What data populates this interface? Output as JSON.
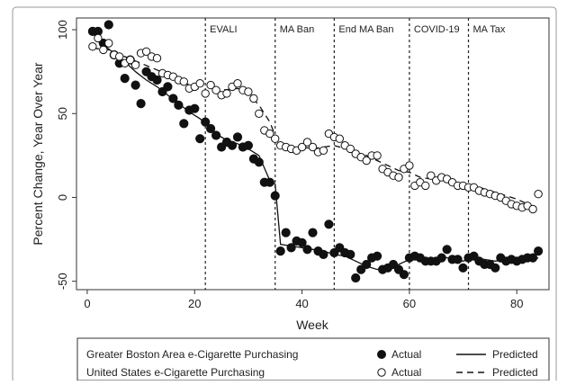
{
  "chart_data": {
    "type": "scatter",
    "xlabel": "Week",
    "ylabel": "Percent Change, Year Over Year",
    "xlim": [
      -2,
      86
    ],
    "ylim": [
      -55,
      107
    ],
    "x_ticks": [
      0,
      20,
      40,
      60,
      80
    ],
    "y_ticks": [
      100,
      50,
      0,
      -50
    ],
    "grid": false,
    "legend_position": "bottom",
    "events": [
      {
        "label": "EVALI",
        "week": 22
      },
      {
        "label": "MA Ban",
        "week": 35
      },
      {
        "label": "End MA Ban",
        "week": 46
      },
      {
        "label": "COVID-19",
        "week": 60
      },
      {
        "label": "MA Tax",
        "week": 71
      }
    ],
    "series": [
      {
        "name": "Greater Boston Area e-Cigarette Purchasing",
        "kind": "actual",
        "marker": "filled-circle",
        "x": [
          1,
          2,
          3,
          4,
          5,
          6,
          7,
          8,
          9,
          10,
          11,
          12,
          13,
          14,
          15,
          16,
          17,
          18,
          19,
          20,
          21,
          22,
          23,
          24,
          25,
          26,
          27,
          28,
          29,
          30,
          31,
          32,
          33,
          34,
          35,
          36,
          37,
          38,
          39,
          40,
          41,
          42,
          43,
          44,
          45,
          46,
          47,
          48,
          49,
          50,
          51,
          52,
          53,
          54,
          55,
          56,
          57,
          58,
          59,
          60,
          61,
          62,
          63,
          64,
          65,
          66,
          67,
          68,
          69,
          70,
          71,
          72,
          73,
          74,
          75,
          76,
          77,
          78,
          79,
          80,
          81,
          82,
          83,
          84
        ],
        "y": [
          99,
          99,
          92,
          103,
          85,
          80,
          71,
          82,
          67,
          56,
          75,
          72,
          70,
          63,
          66,
          59,
          55,
          44,
          52,
          53,
          35,
          45,
          41,
          37,
          30,
          33,
          31,
          36,
          30,
          31,
          23,
          21,
          9,
          9,
          1,
          -32,
          -21,
          -30,
          -26,
          -27,
          -31,
          -21,
          -32,
          -34,
          -16,
          -33,
          -30,
          -33,
          -34,
          -48,
          -43,
          -40,
          -36,
          -35,
          -43,
          -42,
          -40,
          -43,
          -46,
          -36,
          -35,
          -36,
          -38,
          -38,
          -38,
          -36,
          -31,
          -37,
          -37,
          -42,
          -36,
          -35,
          -38,
          -40,
          -40,
          -42,
          -36,
          -38,
          -37,
          -38,
          -37,
          -36,
          -36,
          -32
        ]
      },
      {
        "name": "Greater Boston Area e-Cigarette Purchasing",
        "kind": "predicted",
        "line": "solid",
        "x": [
          1,
          3,
          5,
          7,
          9,
          11,
          13,
          15,
          17,
          19,
          21,
          22,
          24,
          26,
          28,
          30,
          32,
          34,
          35,
          36,
          38,
          40,
          42,
          44,
          46,
          48,
          50,
          52,
          54,
          56,
          58,
          60,
          62,
          64,
          66,
          68,
          70,
          72,
          74,
          76,
          78,
          80,
          82,
          84
        ],
        "y": [
          98,
          91,
          86,
          81,
          75,
          70,
          66,
          61,
          56,
          51,
          47,
          44,
          38,
          34,
          32,
          29,
          25,
          10,
          8,
          -28,
          -29,
          -30,
          -31,
          -32,
          -34,
          -35,
          -38,
          -41,
          -43,
          -41,
          -40,
          -37,
          -36,
          -37,
          -35,
          -37,
          -38,
          -36,
          -37,
          -38,
          -37,
          -37,
          -38,
          -36
        ]
      },
      {
        "name": "United States e-Cigarette Purchasing",
        "kind": "actual",
        "marker": "hollow-circle",
        "x": [
          1,
          2,
          3,
          4,
          5,
          6,
          7,
          8,
          9,
          10,
          11,
          12,
          13,
          14,
          15,
          16,
          17,
          18,
          19,
          20,
          21,
          22,
          23,
          24,
          25,
          26,
          27,
          28,
          29,
          30,
          31,
          32,
          33,
          34,
          35,
          36,
          37,
          38,
          39,
          40,
          41,
          42,
          43,
          44,
          45,
          46,
          47,
          48,
          49,
          50,
          51,
          52,
          53,
          54,
          55,
          56,
          57,
          58,
          59,
          60,
          61,
          62,
          63,
          64,
          65,
          66,
          67,
          68,
          69,
          70,
          71,
          72,
          73,
          74,
          75,
          76,
          77,
          78,
          79,
          80,
          81,
          82,
          83,
          84
        ],
        "y": [
          90,
          95,
          88,
          92,
          85,
          84,
          80,
          82,
          79,
          86,
          87,
          84,
          83,
          74,
          73,
          72,
          70,
          69,
          65,
          66,
          68,
          62,
          67,
          64,
          61,
          62,
          66,
          68,
          64,
          63,
          59,
          50,
          40,
          38,
          35,
          31,
          30,
          29,
          28,
          30,
          33,
          30,
          27,
          28,
          38,
          36,
          35,
          31,
          29,
          26,
          24,
          22,
          25,
          25,
          17,
          15,
          13,
          12,
          17,
          19,
          7,
          9,
          7,
          13,
          10,
          12,
          11,
          9,
          7,
          7,
          6,
          6,
          4,
          3,
          2,
          1,
          0,
          -2,
          -4,
          -5,
          -6,
          -5,
          -7,
          2
        ]
      },
      {
        "name": "United States e-Cigarette Purchasing",
        "kind": "predicted",
        "line": "dashed",
        "x": [
          1,
          4,
          7,
          10,
          13,
          16,
          19,
          22,
          25,
          28,
          30,
          32,
          34,
          35,
          36,
          38,
          40,
          42,
          44,
          46,
          48,
          50,
          52,
          54,
          56,
          58,
          60,
          62,
          64,
          66,
          68,
          70,
          72,
          74,
          76,
          78,
          80,
          82,
          84
        ],
        "y": [
          89,
          88,
          84,
          80,
          76,
          72,
          67,
          63,
          64,
          65,
          62,
          55,
          45,
          37,
          32,
          30,
          30,
          29,
          30,
          31,
          29,
          27,
          25,
          22,
          19,
          16,
          15,
          12,
          11,
          10,
          9,
          8,
          7,
          5,
          3,
          1,
          -1,
          -4,
          -6
        ]
      }
    ]
  },
  "legend": {
    "rows": [
      {
        "label": "Greater Boston Area e-Cigarette Purchasing",
        "actual": "Actual",
        "predicted": "Predicted"
      },
      {
        "label": "United States e-Cigarette Purchasing",
        "actual": "Actual",
        "predicted": "Predicted"
      }
    ]
  }
}
